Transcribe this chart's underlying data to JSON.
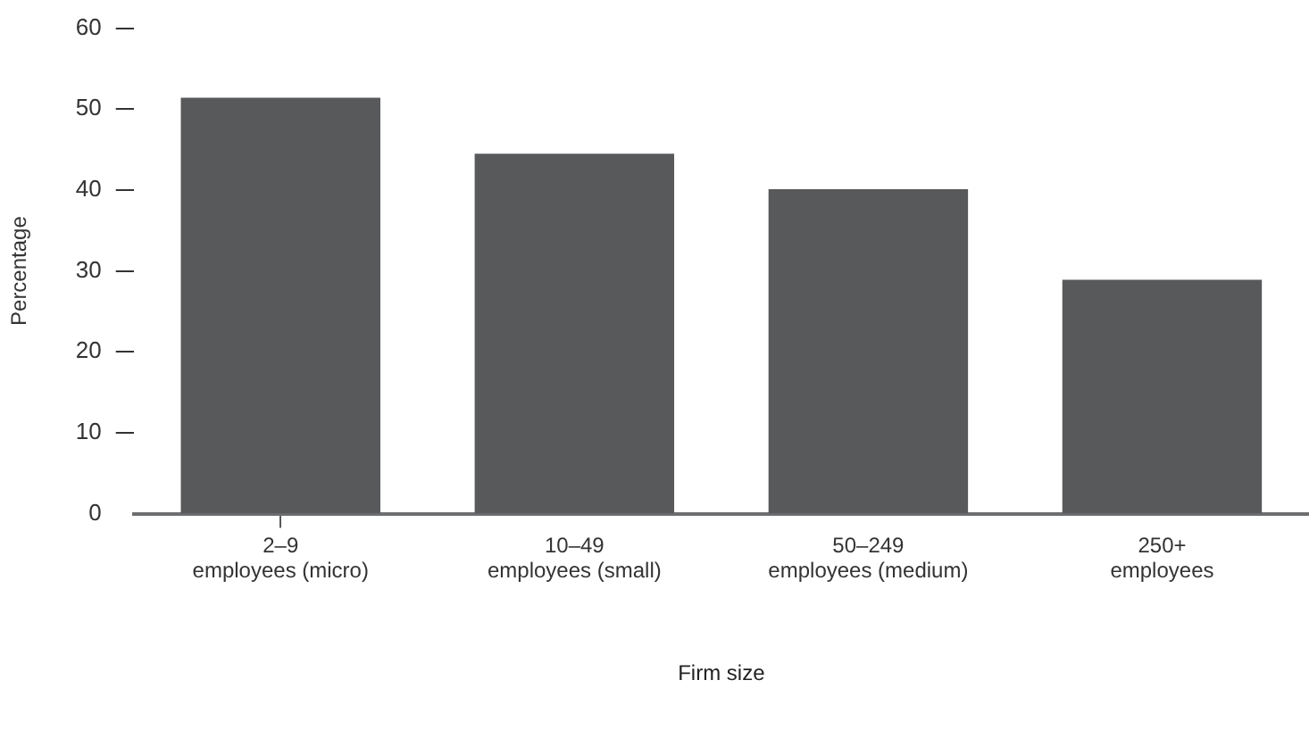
{
  "chart_data": {
    "type": "bar",
    "xlabel": "Firm size",
    "ylabel": "Percentage",
    "categories": [
      "2–9 employees (micro)",
      "10–49 employees (small)",
      "50–249 employees (medium)",
      "250+ employees"
    ],
    "values": [
      51.4,
      44.5,
      40.1,
      28.9
    ],
    "color": "#58595b",
    "ylim": [
      0,
      60
    ],
    "yticks": [
      0,
      10,
      20,
      30,
      40,
      50,
      60
    ],
    "grid": false,
    "legend": false
  }
}
